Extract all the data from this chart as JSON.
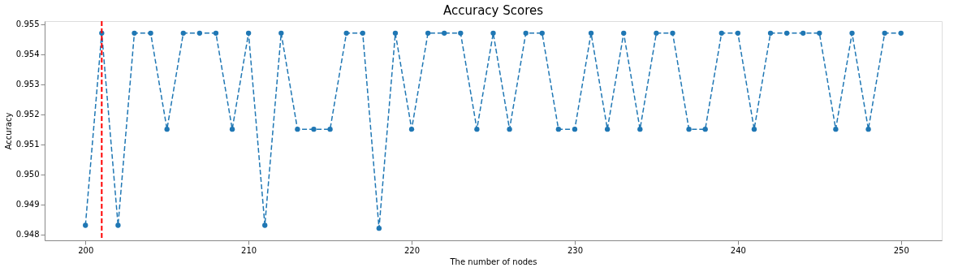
{
  "chart_data": {
    "type": "line",
    "title": "Accuracy Scores",
    "xlabel": "The number of nodes",
    "ylabel": "Accuracy",
    "x": [
      200,
      201,
      202,
      203,
      204,
      205,
      206,
      207,
      208,
      209,
      210,
      211,
      212,
      213,
      214,
      215,
      216,
      217,
      218,
      219,
      220,
      221,
      222,
      223,
      224,
      225,
      226,
      227,
      228,
      229,
      230,
      231,
      232,
      233,
      234,
      235,
      236,
      237,
      238,
      239,
      240,
      241,
      242,
      243,
      244,
      245,
      246,
      247,
      248,
      249,
      250
    ],
    "series": [
      {
        "color": "#1f77b4",
        "values": [
          0.9483,
          0.9547,
          0.9483,
          0.9547,
          0.9547,
          0.9515,
          0.9547,
          0.9547,
          0.9547,
          0.9515,
          0.9547,
          0.9483,
          0.9547,
          0.9515,
          0.9515,
          0.9515,
          0.9547,
          0.9547,
          0.9482,
          0.9547,
          0.9515,
          0.9547,
          0.9547,
          0.9547,
          0.9515,
          0.9547,
          0.9515,
          0.9547,
          0.9547,
          0.9515,
          0.9515,
          0.9547,
          0.9515,
          0.9547,
          0.9515,
          0.9547,
          0.9547,
          0.9515,
          0.9515,
          0.9547,
          0.9547,
          0.9515,
          0.9547,
          0.9547,
          0.9547,
          0.9547,
          0.9515,
          0.9547,
          0.9515,
          0.9547,
          0.9547
        ]
      }
    ],
    "xlim": [
      197.5,
      252.5
    ],
    "xticks": [
      200,
      210,
      220,
      230,
      240,
      250
    ],
    "ylim": [
      0.9478,
      0.9551
    ],
    "yticks": [
      0.948,
      0.949,
      {
        "value": 0.95,
        "label": "0.950"
      },
      0.951,
      0.952,
      0.953,
      0.954,
      0.955
    ],
    "ref_lines": [
      {
        "axis": "x",
        "value": 201,
        "color": "#ff0000",
        "line_style": "dashed"
      }
    ],
    "marker": "circle",
    "line_style": "dashed",
    "grid": false
  }
}
